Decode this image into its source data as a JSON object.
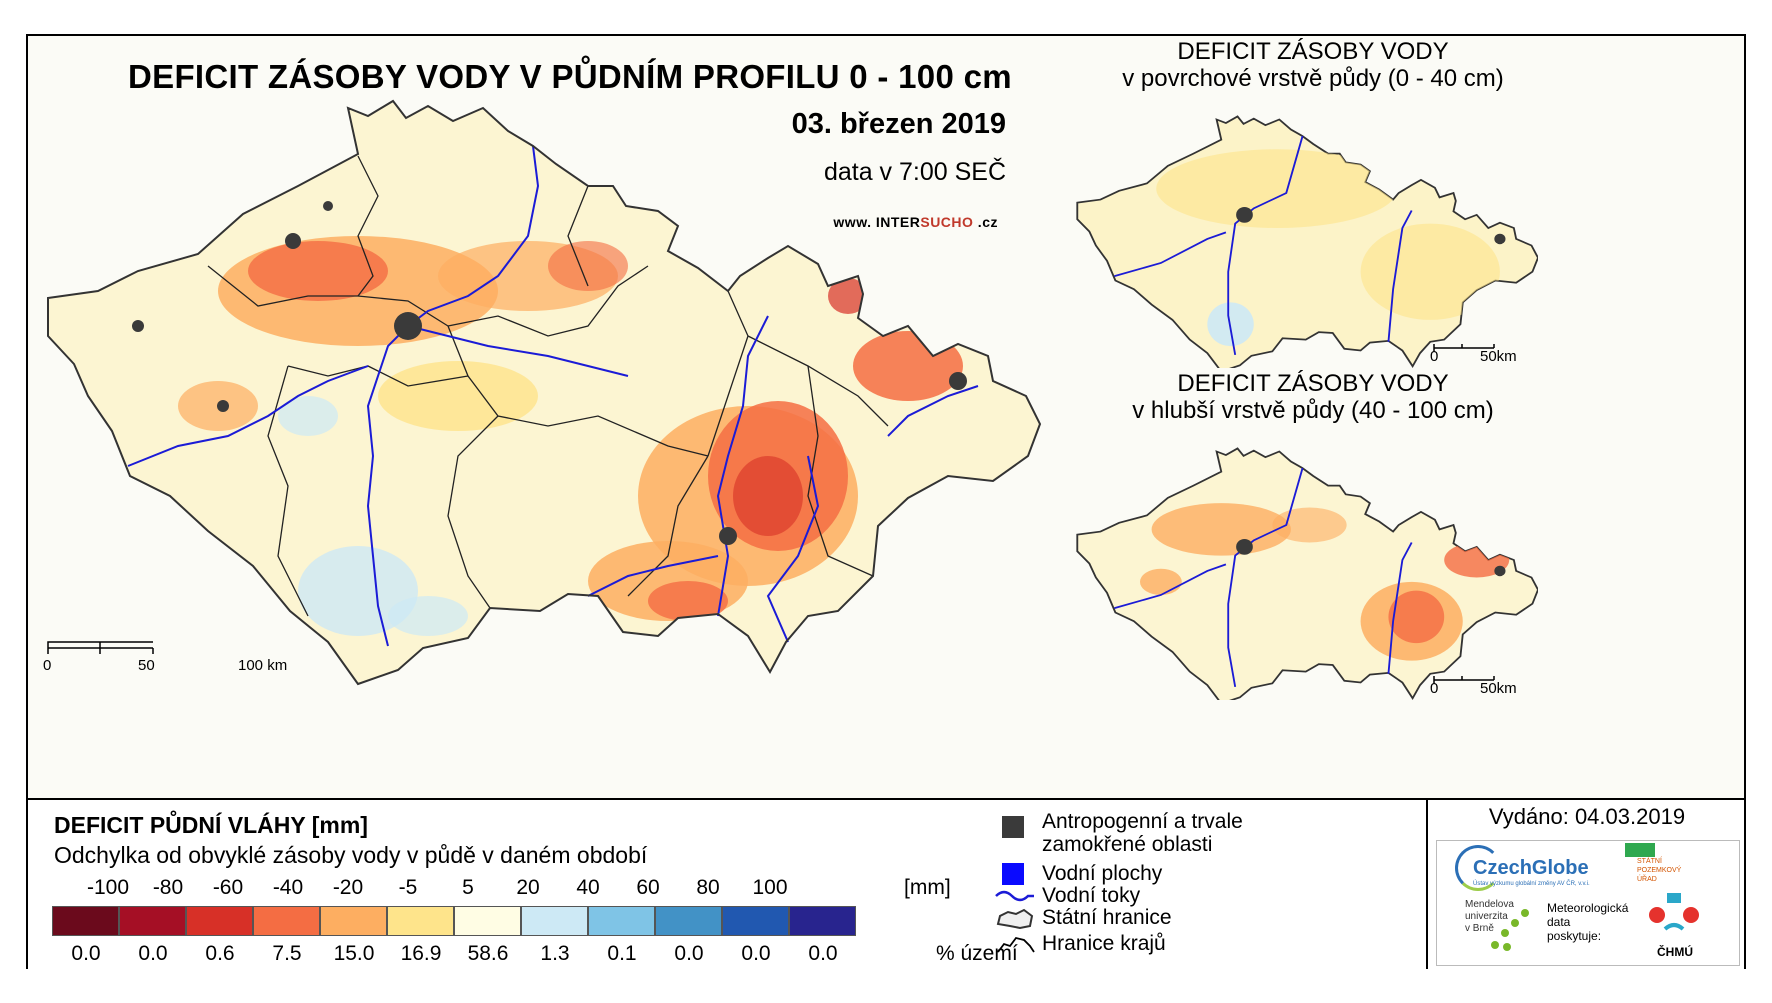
{
  "main_map": {
    "title": "DEFICIT ZÁSOBY VODY V PŮDNÍM PROFILU 0 - 100 cm",
    "date": "03. březen 2019",
    "time": "data v 7:00 SEČ",
    "web_prefix": "www. INTER",
    "web_highlight": "SUCHO",
    "web_suffix": " .cz",
    "scale": [
      "0",
      "50",
      "100 km"
    ]
  },
  "inset_top": {
    "title_line1": "DEFICIT ZÁSOBY VODY",
    "title_line2": "v povrchové vrstvě půdy (0 - 40 cm)",
    "scale": [
      "0",
      "50km"
    ]
  },
  "inset_bottom": {
    "title_line1": "DEFICIT ZÁSOBY VODY",
    "title_line2": "v hlubší vrstvě půdy (40 - 100 cm)",
    "scale": [
      "0",
      "50km"
    ]
  },
  "legend": {
    "title": "DEFICIT PŮDNÍ VLÁHY [mm]",
    "subtitle": "Odchylka od obvyklé zásoby vody v půdě v daném období",
    "ticks": [
      "-100",
      "-80",
      "-60",
      "-40",
      "-20",
      "-5",
      "5",
      "20",
      "40",
      "60",
      "80",
      "100"
    ],
    "unit": "[mm]",
    "colors": [
      "#6b0a1c",
      "#a50f25",
      "#d73027",
      "#f46d43",
      "#fdae61",
      "#fee48b",
      "#fffde4",
      "#cde9f5",
      "#7fc4e6",
      "#4292c6",
      "#2158b0",
      "#28248e",
      "#0b1e5e"
    ],
    "percentages": [
      "0.0",
      "0.0",
      "0.6",
      "7.5",
      "15.0",
      "16.9",
      "58.6",
      "1.3",
      "0.1",
      "0.0",
      "0.0",
      "0.0"
    ],
    "pct_unit": "% území",
    "symbols": {
      "anthropogenic_line1": "Antropogenní a trvale",
      "anthropogenic_line2": "zamokřené oblasti",
      "water_bodies": "Vodní plochy",
      "rivers": "Vodní toky",
      "state_border": "Státní hranice",
      "region_border": "Hranice krajů"
    }
  },
  "issued": {
    "text": "Vydáno: 04.03.2019",
    "logos": {
      "czechglobe": "CzechGlobe",
      "czechglobe_sub": "Ústav výzkumu globální změny AV ČR, v.v.i.",
      "szu": [
        "STÁTNÍ",
        "POZEMKOVÝ",
        "ÚŘAD"
      ],
      "mendel": [
        "Mendelova",
        "univerzita",
        "v Brně"
      ],
      "meteo": [
        "Meteorologická",
        "data",
        "poskytuje:"
      ],
      "chmu": "ČHMÚ"
    }
  }
}
